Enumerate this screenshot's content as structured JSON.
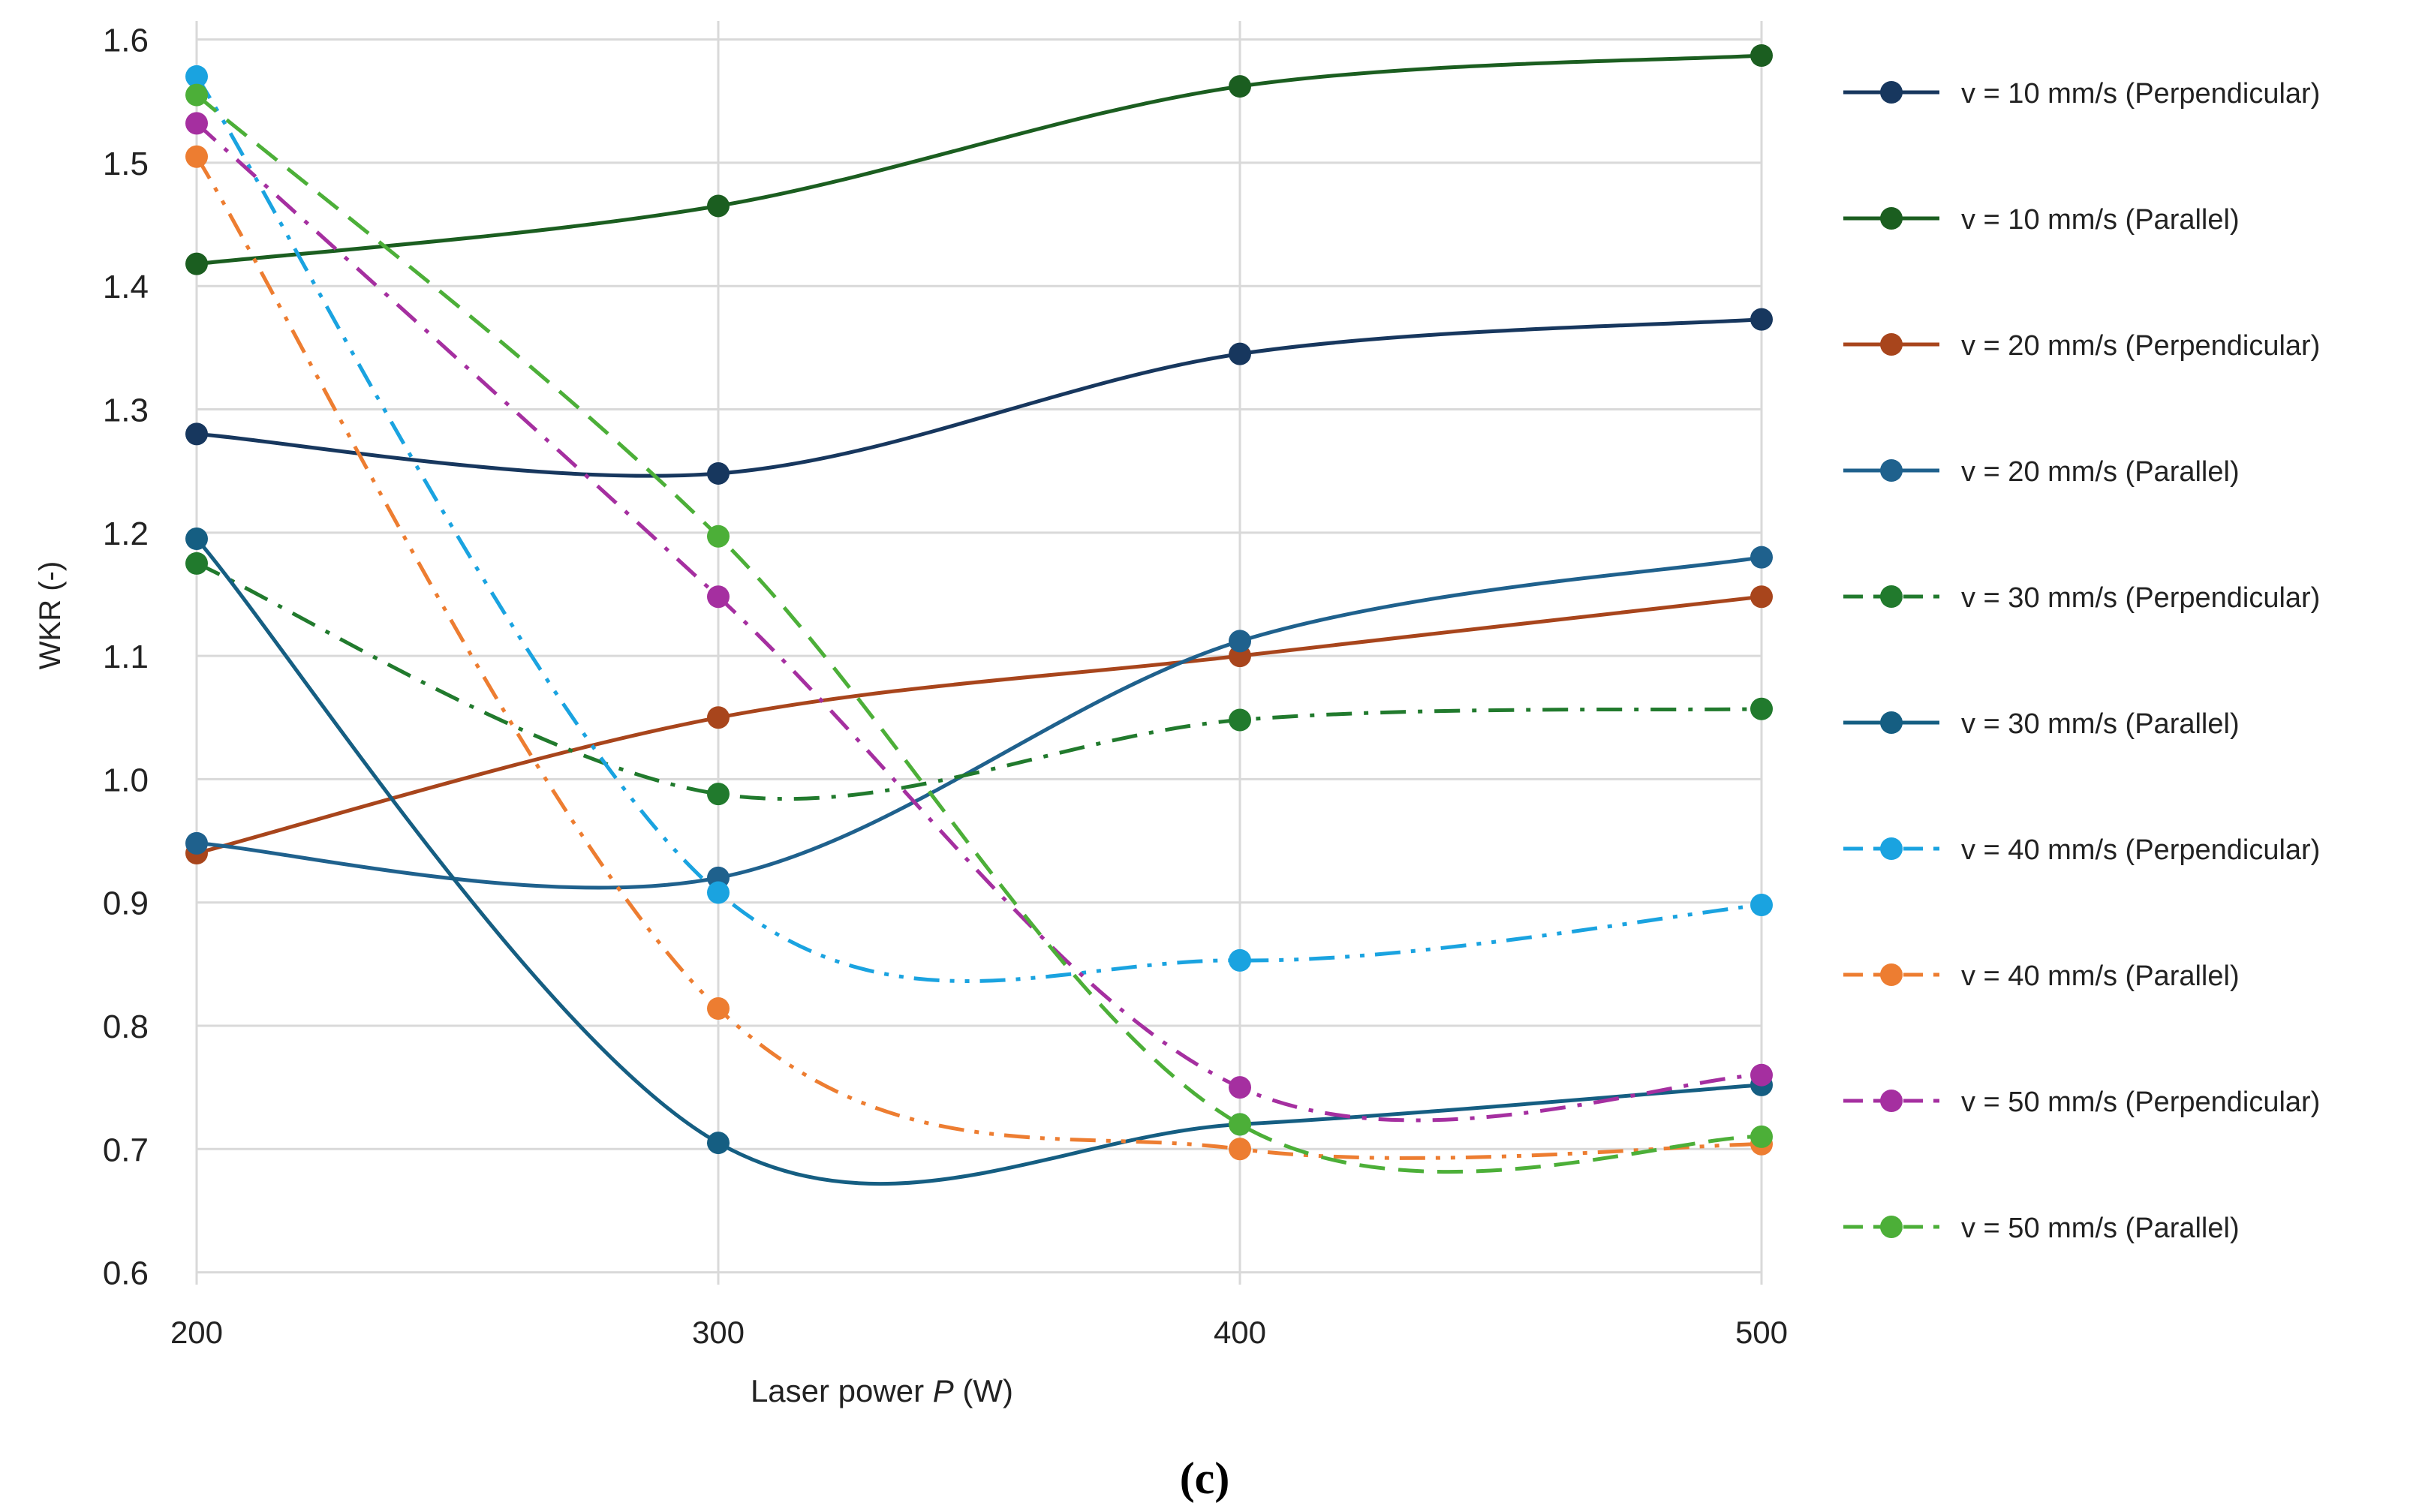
{
  "chart_data": {
    "type": "line",
    "title": "",
    "xlabel_prefix": "Laser power ",
    "xlabel_var": "P",
    "xlabel_suffix": " (W)",
    "ylabel": "WKR (-)",
    "x": [
      200,
      300,
      400,
      500
    ],
    "x_ticks": [
      "200",
      "300",
      "400",
      "500"
    ],
    "y_ticks": [
      "0.6",
      "0.7",
      "0.8",
      "0.9",
      "1.0",
      "1.1",
      "1.2",
      "1.3",
      "1.4",
      "1.5",
      "1.6"
    ],
    "xlim": [
      200,
      500
    ],
    "ylim": [
      0.59,
      1.615
    ],
    "grid": true,
    "legend_position": "right",
    "panel_label": "(c)",
    "series": [
      {
        "name": "v = 10 mm/s (Perpendicular)",
        "values": [
          1.28,
          1.248,
          1.345,
          1.373
        ],
        "color": "#17375e",
        "dash": "solid"
      },
      {
        "name": "v = 10 mm/s (Parallel)",
        "values": [
          1.418,
          1.465,
          1.562,
          1.587
        ],
        "color": "#1b5e20",
        "dash": "solid"
      },
      {
        "name": "v = 20 mm/s (Perpendicular)",
        "values": [
          0.94,
          1.05,
          1.1,
          1.148
        ],
        "color": "#a8451c",
        "dash": "solid"
      },
      {
        "name": "v = 20 mm/s (Parallel)",
        "values": [
          0.948,
          0.92,
          1.112,
          1.18
        ],
        "color": "#1f618d",
        "dash": "solid"
      },
      {
        "name": "v = 30 mm/s (Perpendicular)",
        "values": [
          1.175,
          0.988,
          1.048,
          1.057
        ],
        "color": "#217a2d",
        "dash": "dashdot"
      },
      {
        "name": "v = 30 mm/s (Parallel)",
        "values": [
          1.195,
          0.705,
          0.72,
          0.752
        ],
        "color": "#155e82",
        "dash": "solid"
      },
      {
        "name": "v = 40 mm/s (Perpendicular)",
        "values": [
          1.57,
          0.908,
          0.853,
          0.898
        ],
        "color": "#1aa3e0",
        "dash": "dashdotdot"
      },
      {
        "name": "v = 40 mm/s (Parallel)",
        "values": [
          1.505,
          0.814,
          0.7,
          0.704
        ],
        "color": "#ed7d31",
        "dash": "dashdotdot"
      },
      {
        "name": "v = 50 mm/s (Perpendicular)",
        "values": [
          1.532,
          1.148,
          0.75,
          0.76
        ],
        "color": "#a52fa0",
        "dash": "dashdot"
      },
      {
        "name": "v = 50 mm/s (Parallel)",
        "values": [
          1.555,
          1.197,
          0.72,
          0.71
        ],
        "color": "#4caf38",
        "dash": "dashed"
      }
    ]
  }
}
